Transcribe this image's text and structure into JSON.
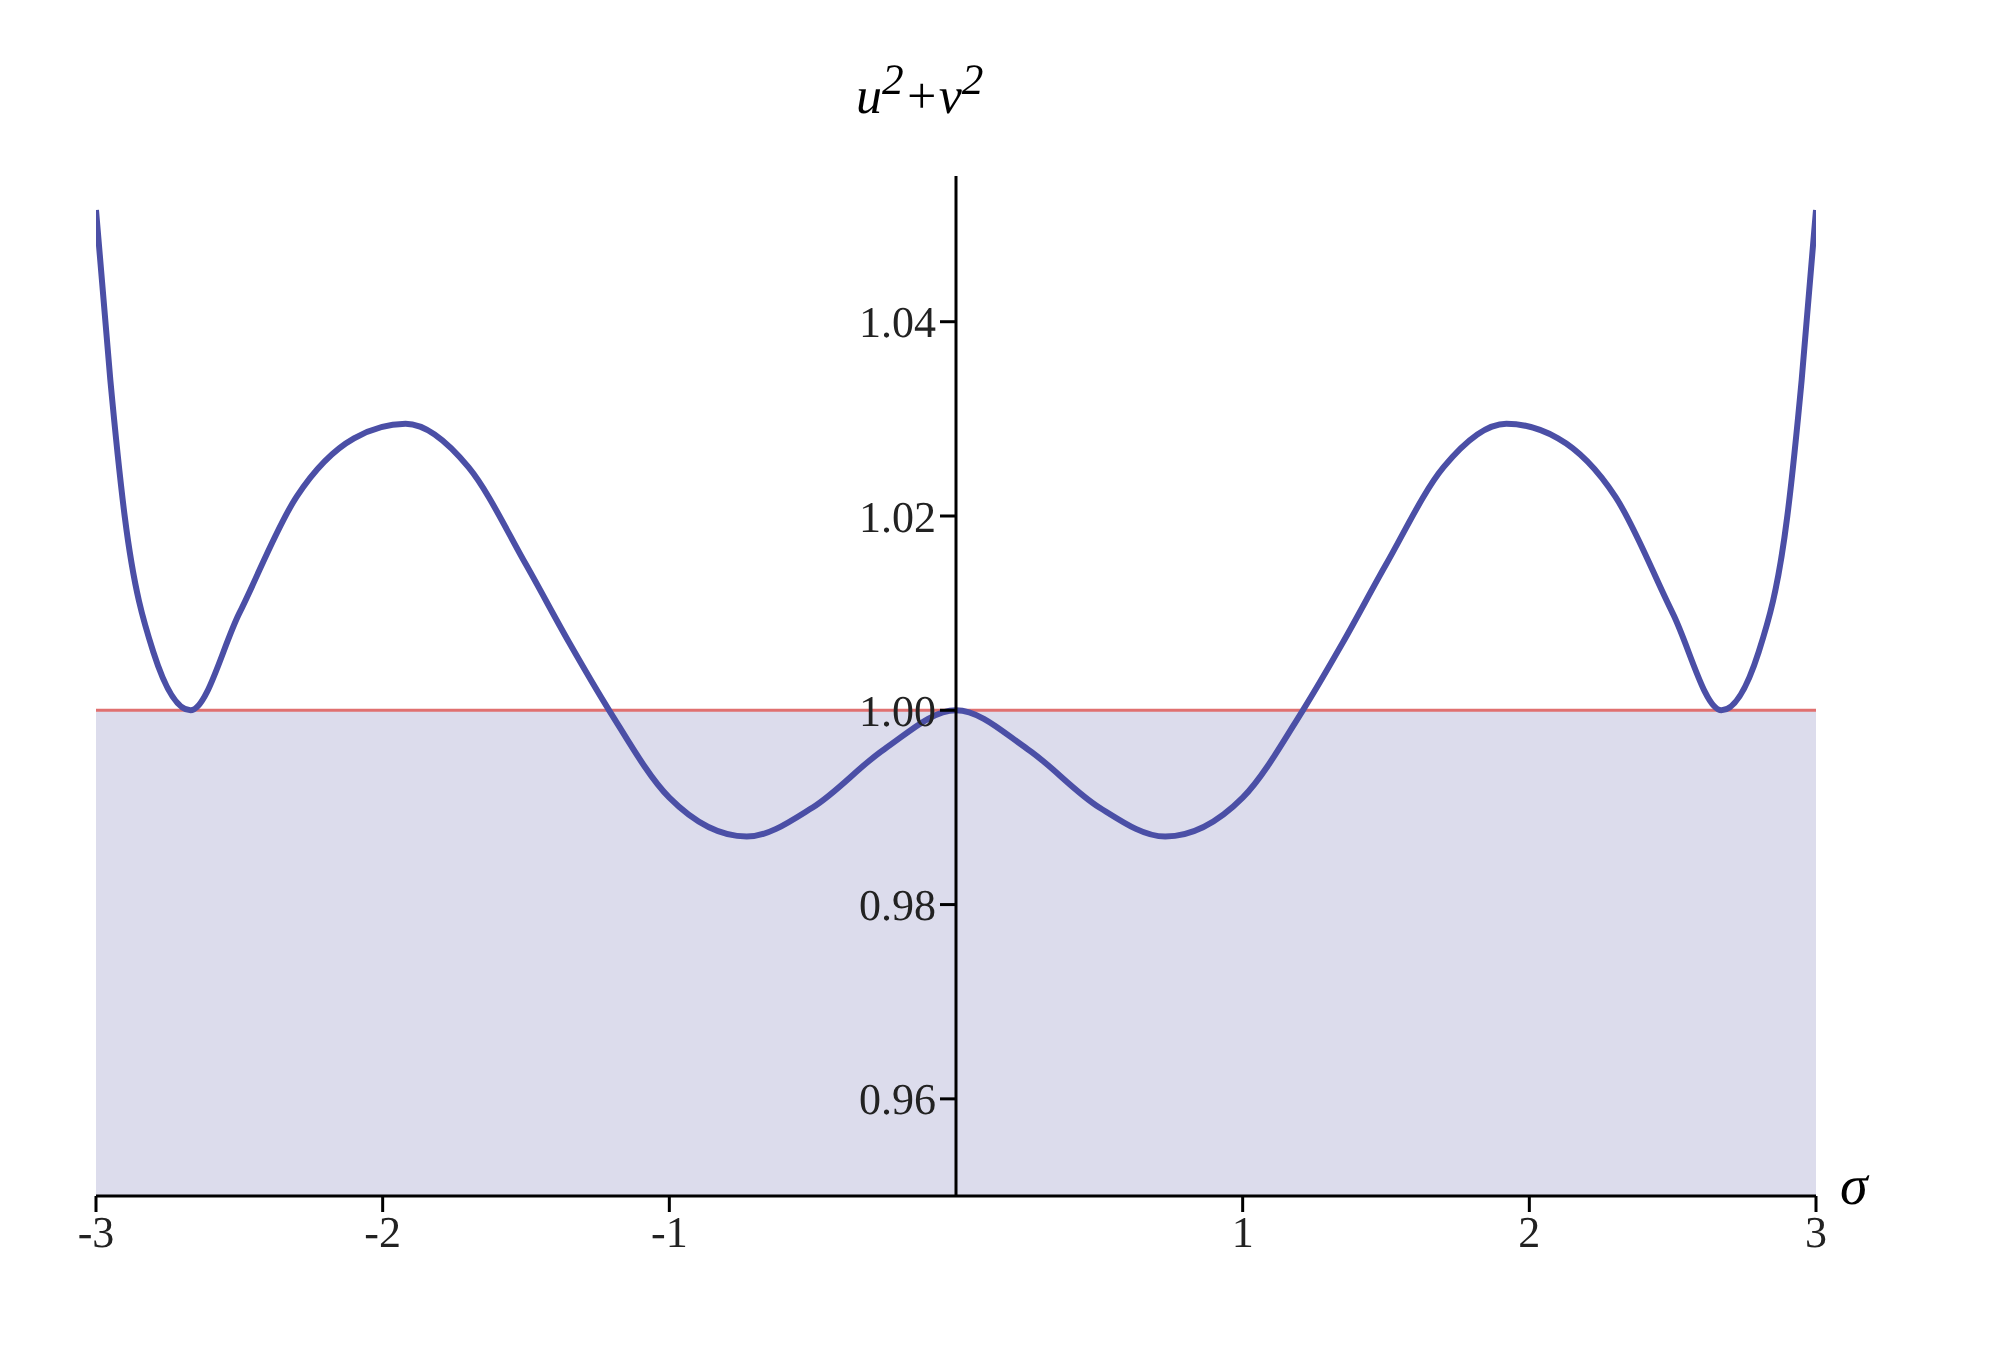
{
  "chart_data": {
    "type": "line",
    "xlabel": "σ",
    "ylabel": "u$^{2}$+v$^{2}$",
    "x": [
      -3,
      -2.95,
      -2.9,
      -2.8,
      -2.67,
      -2.5,
      -2.3,
      -2.1,
      -1.92,
      -1.7,
      -1.5,
      -1.35,
      -1.21,
      -1,
      -0.73,
      -0.5,
      -0.25,
      0,
      0.25,
      0.5,
      0.73,
      1,
      1.21,
      1.35,
      1.5,
      1.7,
      1.92,
      2.1,
      2.3,
      2.5,
      2.67,
      2.8,
      2.9,
      2.95,
      3
    ],
    "series": [
      {
        "color": "#4b4fa6",
        "values": [
          1.0515,
          1.034,
          1.02,
          1.006,
          1.0,
          1.01,
          1.022,
          1.028,
          1.0295,
          1.025,
          1.015,
          1.007,
          1.0,
          0.991,
          0.987,
          0.99,
          0.996,
          1.0,
          0.996,
          0.99,
          0.987,
          0.991,
          1.0,
          1.007,
          1.015,
          1.025,
          1.0295,
          1.028,
          1.022,
          1.01,
          1.0,
          1.006,
          1.02,
          1.034,
          1.0515
        ]
      }
    ],
    "xlim": [
      -3,
      3
    ],
    "xticks": [
      -3,
      -2,
      -1,
      1,
      2,
      3
    ],
    "ylim": [
      0.95,
      1.055
    ],
    "yticks": [
      0.96,
      0.98,
      {
        "value": 1,
        "label": "1.00"
      },
      1.02,
      1.04
    ],
    "ref_lines": [
      {
        "axis": "y",
        "value": 1,
        "color": "#e07070"
      }
    ],
    "bands": [
      {
        "axis": "y",
        "from": 0.95,
        "to": 1,
        "color": "#dcdcec"
      }
    ],
    "grid": false,
    "legend": false,
    "marker": "none",
    "line_style": "solid"
  }
}
